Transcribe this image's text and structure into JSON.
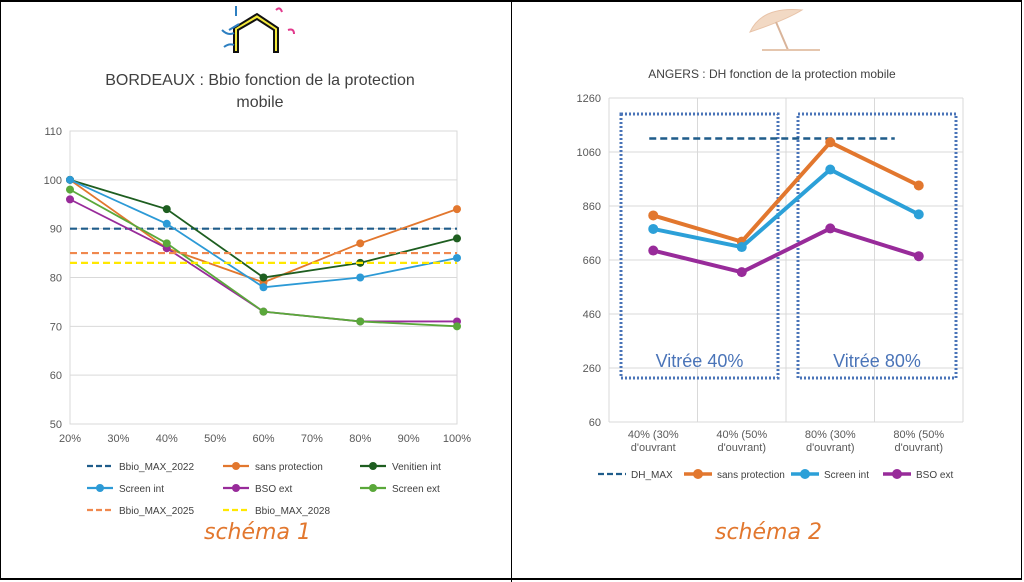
{
  "chart_data": [
    {
      "type": "line",
      "title": "BORDEAUX : Bbio fonction de la protection mobile",
      "title_lines": [
        "BORDEAUX : Bbio fonction de la protection",
        "mobile"
      ],
      "x_ticks": [
        "20%",
        "30%",
        "40%",
        "50%",
        "60%",
        "70%",
        "80%",
        "90%",
        "100%"
      ],
      "xlim": [
        20,
        100
      ],
      "ylim": [
        50,
        110
      ],
      "y_ticks": [
        50,
        60,
        70,
        80,
        90,
        100,
        110
      ],
      "grid": true,
      "legend_position": "bottom",
      "series": [
        {
          "name": "Bbio_MAX_2022",
          "color": "#1f5c8a",
          "dash": true,
          "x": [
            20,
            100
          ],
          "y": [
            90,
            90
          ]
        },
        {
          "name": "sans protection",
          "color": "#e2772e",
          "dash": false,
          "x": [
            20,
            40,
            60,
            80,
            100
          ],
          "y": [
            100,
            86,
            79,
            87,
            94
          ]
        },
        {
          "name": "Venitien int",
          "color": "#1e5e20",
          "dash": false,
          "x": [
            20,
            40,
            60,
            80,
            100
          ],
          "y": [
            100,
            94,
            80,
            83,
            88
          ]
        },
        {
          "name": "Screen int",
          "color": "#2c9ad6",
          "dash": false,
          "x": [
            20,
            40,
            60,
            80,
            100
          ],
          "y": [
            100,
            91,
            78,
            80,
            84
          ]
        },
        {
          "name": "BSO ext",
          "color": "#982b9a",
          "dash": false,
          "x": [
            20,
            40,
            60,
            80,
            100
          ],
          "y": [
            96,
            86,
            73,
            71,
            71
          ]
        },
        {
          "name": "Screen ext",
          "color": "#5aa83a",
          "dash": false,
          "x": [
            20,
            40,
            60,
            80,
            100
          ],
          "y": [
            98,
            87,
            73,
            71,
            70
          ]
        },
        {
          "name": "Bbio_MAX_2025",
          "color": "#f0884e",
          "dash": true,
          "x": [
            20,
            100
          ],
          "y": [
            85,
            85
          ]
        },
        {
          "name": "Bbio_MAX_2028",
          "color": "#ffe800",
          "dash": true,
          "x": [
            20,
            100
          ],
          "y": [
            83,
            83
          ]
        }
      ],
      "caption": "schéma 1"
    },
    {
      "type": "line",
      "title": "ANGERS : DH fonction de la protection mobile",
      "categories": [
        "40% (30% d'ouvrant",
        "40% (50% d'ouvrant)",
        "80% (30% d'ouvrant)",
        "80% (50% d'ouvrant)"
      ],
      "category_lines": [
        [
          "40% (30%",
          "d'ouvrant"
        ],
        [
          "40% (50%",
          "d'ouvrant)"
        ],
        [
          "80% (30%",
          "d'ouvrant)"
        ],
        [
          "80% (50%",
          "d'ouvrant)"
        ]
      ],
      "ylim": [
        60,
        1260
      ],
      "y_ticks": [
        60,
        260,
        460,
        660,
        860,
        1060,
        1260
      ],
      "grid": true,
      "legend_position": "bottom",
      "series": [
        {
          "name": "DH_MAX",
          "color": "#1f5c8a",
          "dash": true,
          "values": [
            1110,
            1110,
            1110,
            1110
          ]
        },
        {
          "name": "sans protection",
          "color": "#e2772e",
          "dash": false,
          "values": [
            825,
            728,
            1096,
            936
          ]
        },
        {
          "name": "Screen int",
          "color": "#2ca0d8",
          "dash": false,
          "values": [
            775,
            708,
            995,
            829
          ]
        },
        {
          "name": "BSO ext",
          "color": "#982b9a",
          "dash": false,
          "values": [
            695,
            615,
            777,
            674
          ]
        }
      ],
      "annotations": [
        "Vitrée 40%",
        "Vitrée 80%"
      ],
      "caption": "schéma 2"
    }
  ],
  "icons": {
    "house": "house-thermal-icon",
    "parasol": "beach-umbrella-icon"
  }
}
